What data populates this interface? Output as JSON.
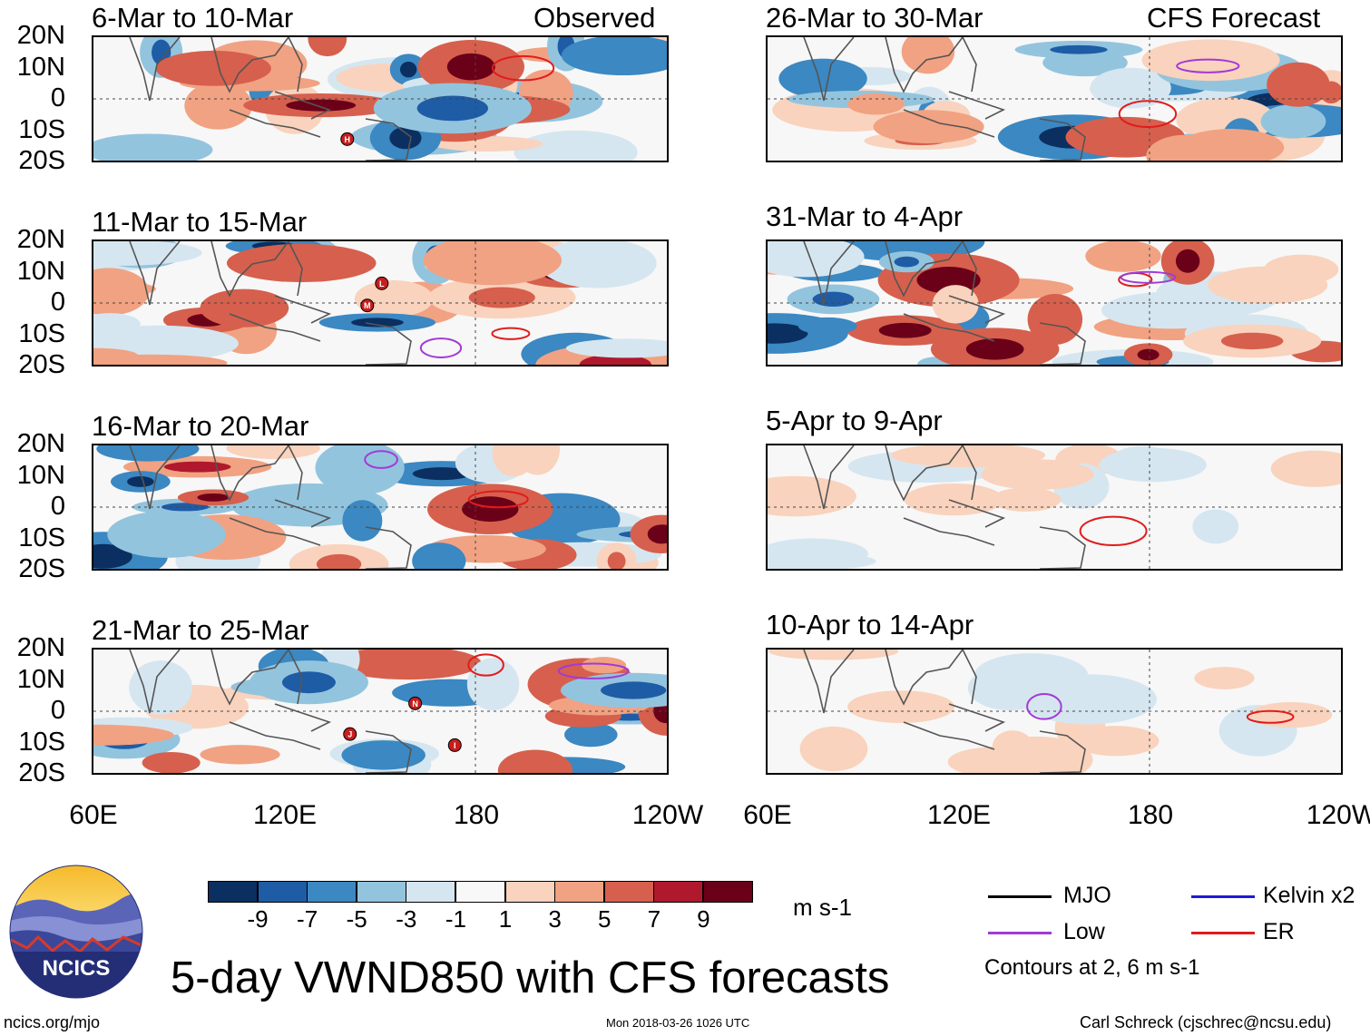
{
  "chart_data": {
    "type": "heatmap",
    "title": "5-day VWND850 with CFS forecasts",
    "units": "m s-1",
    "columns": [
      {
        "label": "Observed",
        "panels": [
          "6-Mar to 10-Mar",
          "11-Mar to 15-Mar",
          "16-Mar to 20-Mar",
          "21-Mar to 25-Mar"
        ]
      },
      {
        "label": "CFS Forecast",
        "panels": [
          "26-Mar to 30-Mar",
          "31-Mar to 4-Apr",
          "5-Apr to 9-Apr",
          "10-Apr to 14-Apr"
        ]
      }
    ],
    "y_ticks": [
      "20N",
      "10N",
      "0",
      "10S",
      "20S"
    ],
    "x_ticks": [
      "60E",
      "120E",
      "180",
      "120W"
    ],
    "ylim": [
      -20,
      20
    ],
    "xlim": [
      60,
      240
    ],
    "colorbar": {
      "labels": [
        "-9",
        "-7",
        "-5",
        "-3",
        "-1",
        "1",
        "3",
        "5",
        "7",
        "9"
      ],
      "colors": [
        "#0b2f60",
        "#1f5ca6",
        "#3b88c2",
        "#93c4de",
        "#d5e6f0",
        "#f8f8f8",
        "#f9d3bd",
        "#f1a282",
        "#d6604d",
        "#b0182d",
        "#6b0019"
      ]
    },
    "legend": [
      {
        "label": "MJO",
        "color": "#000000"
      },
      {
        "label": "Kelvin x2",
        "color": "#1b1bd6"
      },
      {
        "label": "Low",
        "color": "#a23ad6"
      },
      {
        "label": "ER",
        "color": "#e01c1c"
      }
    ],
    "contour_note": "Contours at 2, 6 m s-1",
    "storm_markers": [
      {
        "panel": "6-Mar to 10-Mar",
        "label": "H"
      },
      {
        "panel": "11-Mar to 15-Mar",
        "label": "M"
      },
      {
        "panel": "11-Mar to 15-Mar",
        "label": "L"
      },
      {
        "panel": "21-Mar to 25-Mar",
        "label": "J"
      },
      {
        "panel": "21-Mar to 25-Mar",
        "label": "N"
      },
      {
        "panel": "21-Mar to 25-Mar",
        "label": "I"
      }
    ]
  },
  "footer": {
    "logo_text": "NCICS",
    "url": "ncics.org/mjo",
    "timestamp": "Mon 2018-03-26 1026 UTC",
    "author": "Carl Schreck (cjschrec@ncsu.edu)"
  }
}
